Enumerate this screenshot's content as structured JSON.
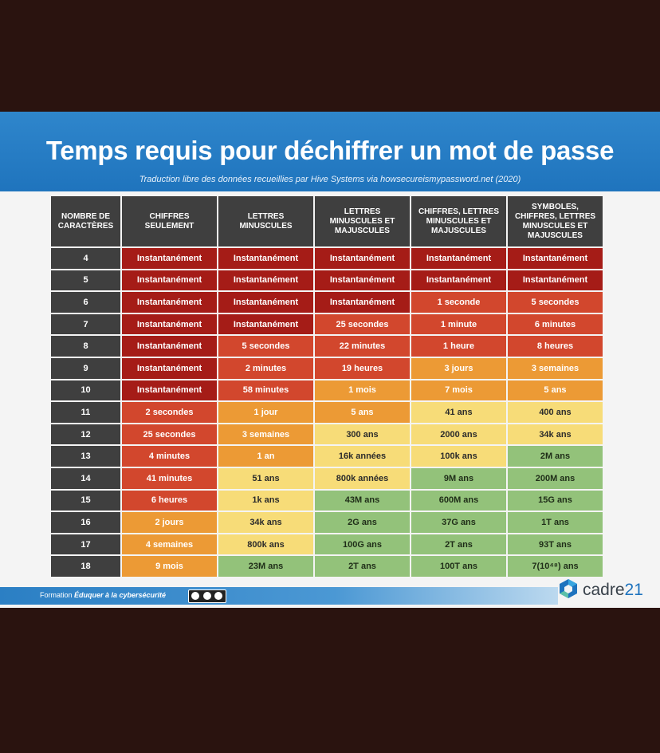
{
  "title": "Temps requis pour déchiffrer un mot de passe",
  "subtitle": "Traduction libre des données recueillies par Hive Systems via howsecureismypassword.net (2020)",
  "headers": [
    "NOMBRE DE CARACTÈRES",
    "CHIFFRES SEULEMENT",
    "LETTRES MINUSCULES",
    "LETTRES MINUSCULES ET MAJUSCULES",
    "CHIFFRES, LETTRES MINUSCULES ET MAJUSCULES",
    "SYMBOLES, CHIFFRES, LETTRES MINUSCULES ET MAJUSCULES"
  ],
  "colors": [
    "#a51c17",
    "#d2472d",
    "#ec9a35",
    "#f7dc78",
    "#93c27a"
  ],
  "rows": [
    {
      "n": "4",
      "cells": [
        "Instantanément",
        "Instantanément",
        "Instantanément",
        "Instantanément",
        "Instantanément"
      ],
      "levels": [
        0,
        0,
        0,
        0,
        0
      ]
    },
    {
      "n": "5",
      "cells": [
        "Instantanément",
        "Instantanément",
        "Instantanément",
        "Instantanément",
        "Instantanément"
      ],
      "levels": [
        0,
        0,
        0,
        0,
        0
      ]
    },
    {
      "n": "6",
      "cells": [
        "Instantanément",
        "Instantanément",
        "Instantanément",
        "1 seconde",
        "5 secondes"
      ],
      "levels": [
        0,
        0,
        0,
        1,
        1
      ]
    },
    {
      "n": "7",
      "cells": [
        "Instantanément",
        "Instantanément",
        "25 secondes",
        "1 minute",
        "6 minutes"
      ],
      "levels": [
        0,
        0,
        1,
        1,
        1
      ]
    },
    {
      "n": "8",
      "cells": [
        "Instantanément",
        "5 secondes",
        "22 minutes",
        "1 heure",
        "8 heures"
      ],
      "levels": [
        0,
        1,
        1,
        1,
        1
      ]
    },
    {
      "n": "9",
      "cells": [
        "Instantanément",
        "2 minutes",
        "19 heures",
        "3 jours",
        "3 semaines"
      ],
      "levels": [
        0,
        1,
        1,
        2,
        2
      ]
    },
    {
      "n": "10",
      "cells": [
        "Instantanément",
        "58 minutes",
        "1 mois",
        "7 mois",
        "5 ans"
      ],
      "levels": [
        0,
        1,
        2,
        2,
        2
      ]
    },
    {
      "n": "11",
      "cells": [
        "2 secondes",
        "1 jour",
        "5 ans",
        "41 ans",
        "400 ans"
      ],
      "levels": [
        1,
        2,
        2,
        3,
        3
      ]
    },
    {
      "n": "12",
      "cells": [
        "25 secondes",
        "3 semaines",
        "300 ans",
        "2000 ans",
        "34k ans"
      ],
      "levels": [
        1,
        2,
        3,
        3,
        3
      ]
    },
    {
      "n": "13",
      "cells": [
        "4 minutes",
        "1 an",
        "16k années",
        "100k ans",
        "2M ans"
      ],
      "levels": [
        1,
        2,
        3,
        3,
        4
      ]
    },
    {
      "n": "14",
      "cells": [
        "41 minutes",
        "51 ans",
        "800k années",
        "9M ans",
        "200M ans"
      ],
      "levels": [
        1,
        3,
        3,
        4,
        4
      ]
    },
    {
      "n": "15",
      "cells": [
        "6 heures",
        "1k ans",
        "43M ans",
        "600M ans",
        "15G ans"
      ],
      "levels": [
        1,
        3,
        4,
        4,
        4
      ]
    },
    {
      "n": "16",
      "cells": [
        "2 jours",
        "34k ans",
        "2G ans",
        "37G ans",
        "1T ans"
      ],
      "levels": [
        2,
        3,
        4,
        4,
        4
      ]
    },
    {
      "n": "17",
      "cells": [
        "4 semaines",
        "800k ans",
        "100G ans",
        "2T ans",
        "93T ans"
      ],
      "levels": [
        2,
        3,
        4,
        4,
        4
      ]
    },
    {
      "n": "18",
      "cells": [
        "9 mois",
        "23M ans",
        "2T ans",
        "100T ans",
        "7(10⁴⁸) ans"
      ],
      "levels": [
        2,
        4,
        4,
        4,
        4
      ]
    }
  ],
  "footer": {
    "prefix": "Formation ",
    "emphasis": "Éduquer à la cybersécurité",
    "license_icon": "creative-commons-by-sa-icon"
  },
  "logo": {
    "word": "cadre",
    "num": "21",
    "icon": "cadre21-logo-icon"
  }
}
